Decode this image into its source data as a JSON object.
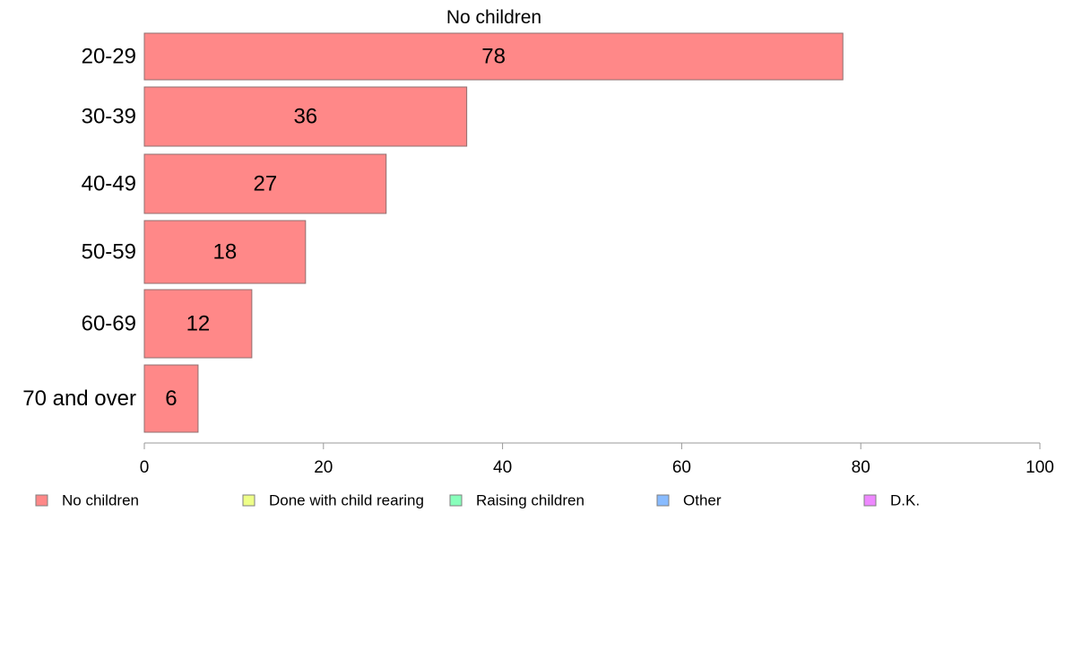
{
  "chart_data": {
    "type": "bar",
    "orientation": "horizontal",
    "title": "No children",
    "categories": [
      "20-29",
      "30-39",
      "40-49",
      "50-59",
      "60-69",
      "70 and over"
    ],
    "series": [
      {
        "name": "No children",
        "color": "#ff8888",
        "values": [
          78,
          36,
          27,
          18,
          12,
          6
        ],
        "data_labels": [
          "78",
          "36",
          "27",
          "18",
          "12",
          "6"
        ]
      }
    ],
    "xlabel": "",
    "ylabel": "",
    "xlim": [
      0,
      100
    ],
    "x_ticks": [
      0,
      20,
      40,
      60,
      80,
      100
    ],
    "x_tick_labels": [
      "0",
      "20",
      "40",
      "60",
      "80",
      "100"
    ],
    "grid": false,
    "legend_position": "bottom",
    "legend": [
      {
        "label": "No children",
        "color": "#ff8888"
      },
      {
        "label": "Done with child rearing",
        "color": "#eeff88"
      },
      {
        "label": "Raising children",
        "color": "#88ffbb"
      },
      {
        "label": "Other",
        "color": "#88bbff"
      },
      {
        "label": "D.K.",
        "color": "#ee88ff"
      }
    ]
  }
}
